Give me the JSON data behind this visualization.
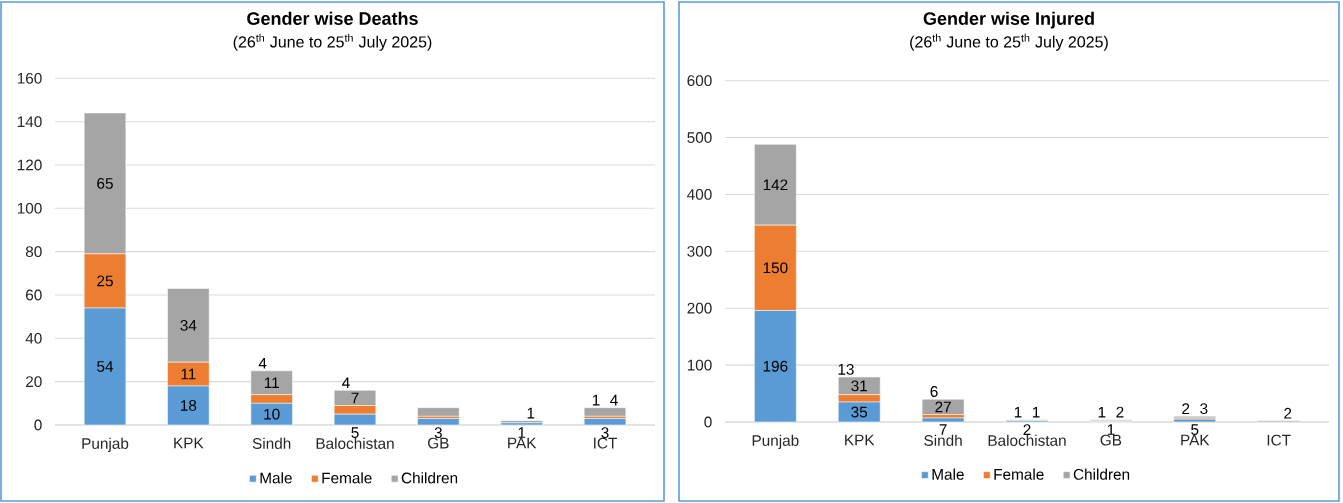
{
  "chart_data": [
    {
      "type": "bar",
      "stacked": true,
      "title": "Gender wise Deaths",
      "subtitle": "(26$^{th}$  June to 25$^{th}$ July 2025)",
      "categories": [
        "Punjab",
        "KPK",
        "Sindh",
        "Balochistan",
        "GB",
        "PAK",
        "ICT"
      ],
      "ylim": [
        0,
        160
      ],
      "yticks": [
        0,
        20,
        40,
        60,
        80,
        100,
        120,
        140,
        160
      ],
      "grid": "y",
      "legend": "bottom",
      "series": [
        {
          "name": "Male",
          "color": "#5b9bd5",
          "values": [
            54,
            18,
            10,
            5,
            3,
            1,
            3
          ],
          "value_labels": [
            "54",
            "18",
            "10",
            "5",
            "3",
            "1",
            "3"
          ]
        },
        {
          "name": "Female",
          "color": "#ed7d31",
          "values": [
            25,
            11,
            4,
            4,
            1,
            0,
            1
          ],
          "value_labels": [
            "25",
            "11",
            "4",
            "4",
            null,
            null,
            "1"
          ]
        },
        {
          "name": "Children",
          "color": "#a5a5a5",
          "values": [
            65,
            34,
            11,
            7,
            4,
            1,
            4
          ],
          "value_labels": [
            "65",
            "34",
            "11",
            "7",
            null,
            "1",
            "4"
          ]
        }
      ]
    },
    {
      "type": "bar",
      "stacked": true,
      "title": "Gender wise Injured",
      "subtitle": "(26$^{th}$  June to 25$^{th}$ July 2025)",
      "categories": [
        "Punjab",
        "KPK",
        "Sindh",
        "Balochistan",
        "GB",
        "PAK",
        "ICT"
      ],
      "ylim": [
        0,
        600
      ],
      "yticks": [
        0,
        100,
        200,
        300,
        400,
        500,
        600
      ],
      "grid": "y",
      "legend": "bottom",
      "series": [
        {
          "name": "Male",
          "color": "#5b9bd5",
          "values": [
            196,
            35,
            7,
            2,
            1,
            5,
            0
          ],
          "value_labels": [
            "196",
            "35",
            "7",
            "2",
            "1",
            "5",
            null
          ]
        },
        {
          "name": "Female",
          "color": "#ed7d31",
          "values": [
            150,
            13,
            6,
            1,
            1,
            2,
            0
          ],
          "value_labels": [
            "150",
            "13",
            "6",
            "1",
            "1",
            "2",
            null
          ]
        },
        {
          "name": "Children",
          "color": "#a5a5a5",
          "values": [
            142,
            31,
            27,
            1,
            2,
            3,
            2
          ],
          "value_labels": [
            "142",
            "31",
            "27",
            "1",
            "2",
            "3",
            "2"
          ]
        }
      ]
    }
  ]
}
